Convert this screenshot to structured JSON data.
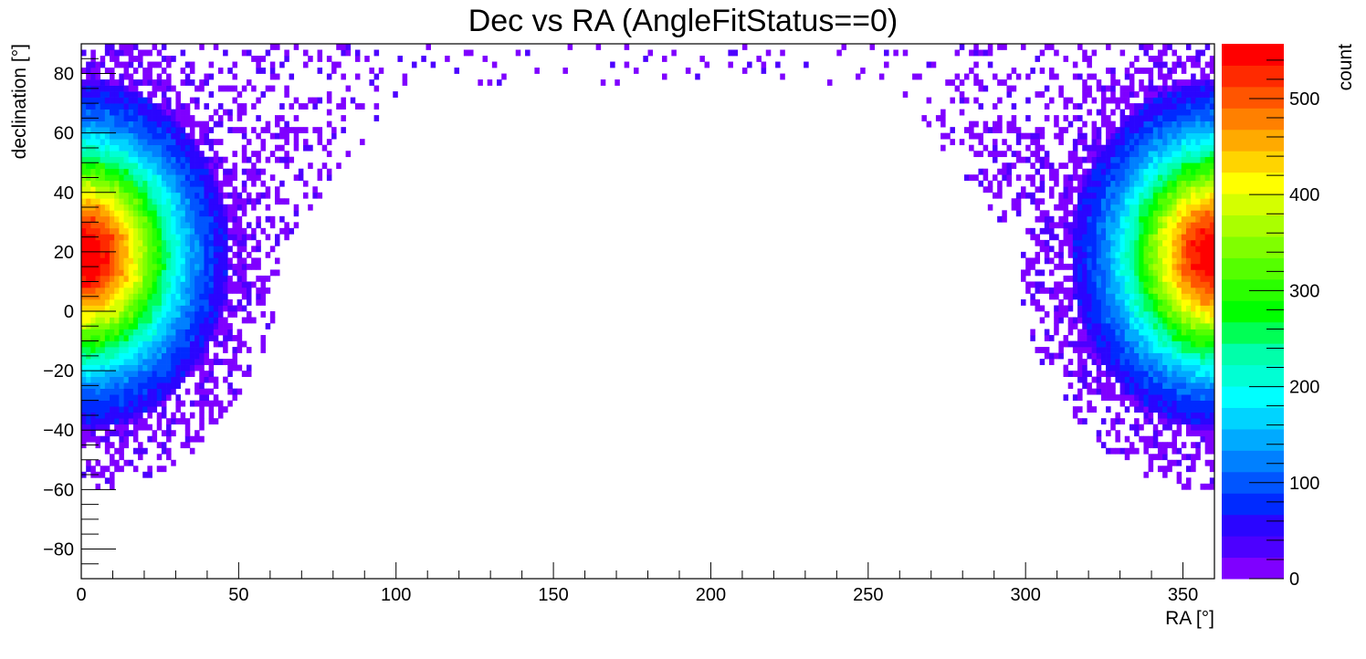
{
  "chart_data": {
    "type": "heatmap",
    "title": "Dec vs RA (AngleFitStatus==0)",
    "xlabel": "RA [°]",
    "ylabel": "declination [°]",
    "zlabel": "count",
    "xlim": [
      0,
      360
    ],
    "ylim": [
      -90,
      90
    ],
    "zlim": [
      0,
      557
    ],
    "x_ticks": [
      "0",
      "50",
      "100",
      "150",
      "200",
      "250",
      "300",
      "350"
    ],
    "y_ticks": [
      "−80",
      "−60",
      "−40",
      "−20",
      "0",
      "20",
      "40",
      "60",
      "80"
    ],
    "z_ticks": [
      "0",
      "100",
      "200",
      "300",
      "400",
      "500"
    ],
    "palette": [
      "#7f00ff",
      "#4c00ff",
      "#2a05ff",
      "#002aff",
      "#0055ff",
      "#0080ff",
      "#00aaff",
      "#00d4ff",
      "#00ffff",
      "#00ffd4",
      "#00ffaa",
      "#00ff55",
      "#00ff00",
      "#2aff00",
      "#55ff00",
      "#80ff00",
      "#aaff00",
      "#d4ff00",
      "#ffff00",
      "#ffd400",
      "#ffaa00",
      "#ff8000",
      "#ff5500",
      "#ff2a00",
      "#ff0000",
      "#ff0000"
    ],
    "hotspot": {
      "ra_center": 0,
      "dec_center": 18,
      "peak_count": 557,
      "wraps_ra": true
    },
    "grid": false,
    "legend": "color scale on right"
  }
}
